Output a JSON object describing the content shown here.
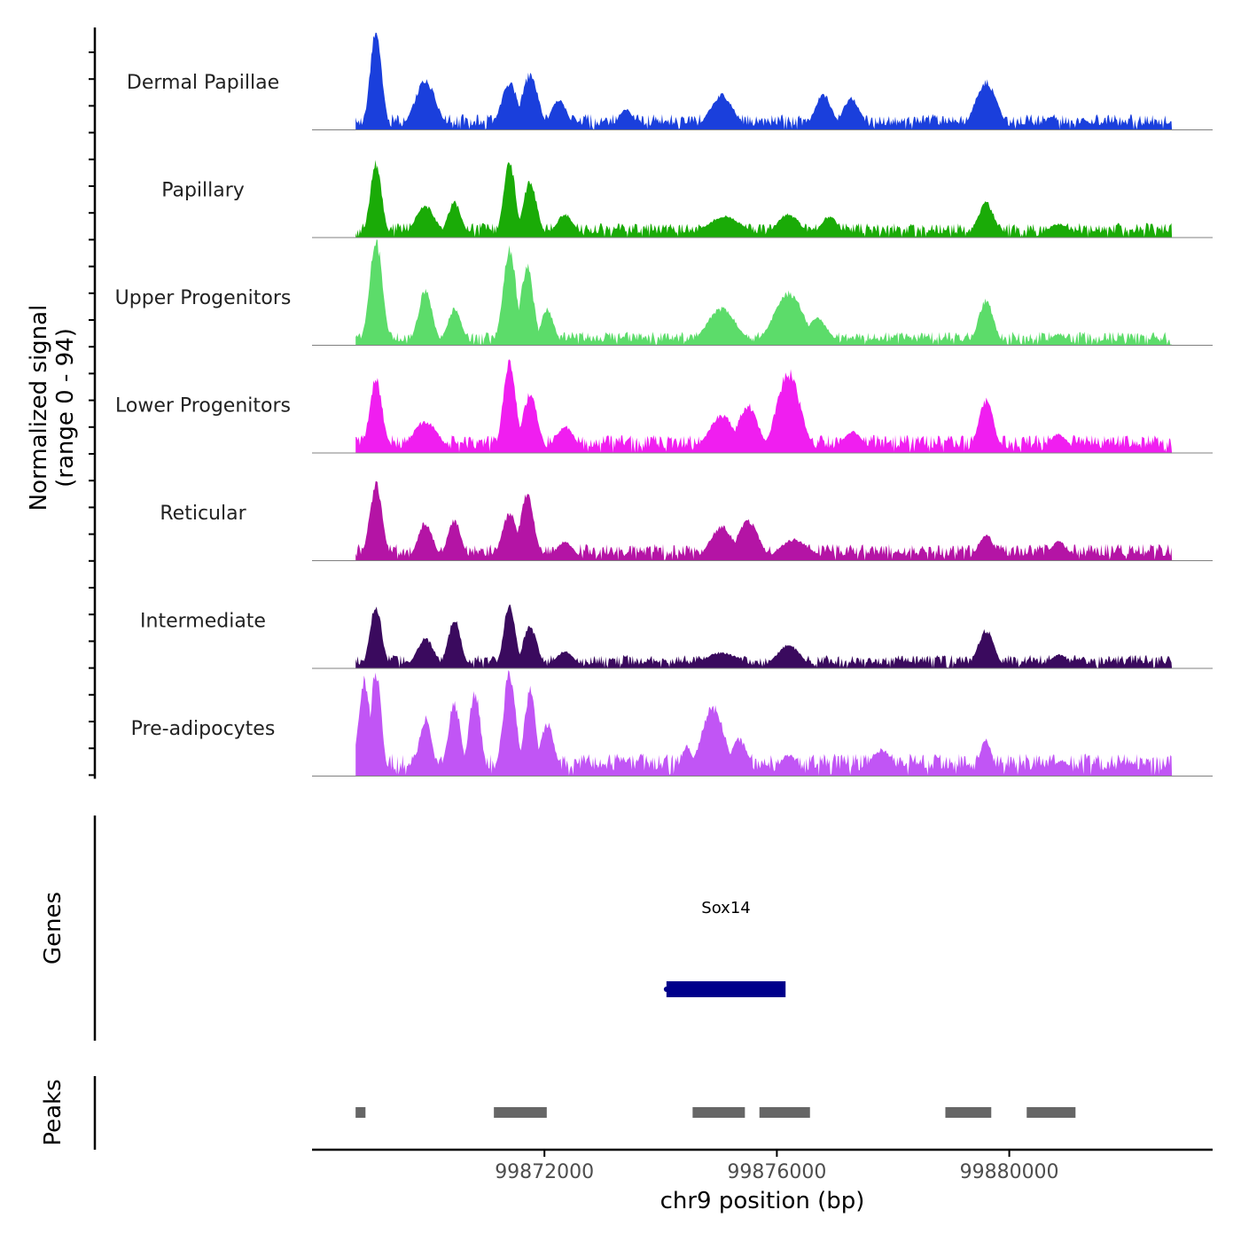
{
  "chart_data": {
    "type": "area",
    "title": "",
    "signal_panel": {
      "ylabel_line1": "Normalized signal",
      "ylabel_line2": "(range 0 - 94)",
      "ylim": [
        0,
        94
      ],
      "tracks": [
        {
          "name": "Dermal Papillae",
          "color": "#1a3fdc",
          "peaks": [
            [
              69100,
              92,
              100
            ],
            [
              69950,
              47,
              180
            ],
            [
              71400,
              45,
              140
            ],
            [
              71750,
              52,
              140
            ],
            [
              72250,
              28,
              140
            ],
            [
              73400,
              20,
              120
            ],
            [
              75050,
              33,
              200
            ],
            [
              76800,
              33,
              150
            ],
            [
              77280,
              30,
              150
            ],
            [
              79600,
              46,
              180
            ],
            [
              81300,
              9,
              100
            ]
          ],
          "baseline": 14
        },
        {
          "name": "Papillary",
          "color": "#1aab07",
          "peaks": [
            [
              69100,
              70,
              100
            ],
            [
              69950,
              30,
              170
            ],
            [
              70450,
              33,
              120
            ],
            [
              71400,
              72,
              100
            ],
            [
              71750,
              52,
              120
            ],
            [
              72350,
              22,
              150
            ],
            [
              75100,
              20,
              300
            ],
            [
              76200,
              22,
              200
            ],
            [
              76900,
              20,
              150
            ],
            [
              79600,
              33,
              140
            ],
            [
              80850,
              13,
              180
            ]
          ],
          "baseline": 13
        },
        {
          "name": "Upper Progenitors",
          "color": "#5cdc6a",
          "peaks": [
            [
              69100,
              100,
              110
            ],
            [
              69950,
              52,
              120
            ],
            [
              70450,
              34,
              120
            ],
            [
              71400,
              93,
              110
            ],
            [
              71700,
              75,
              110
            ],
            [
              72050,
              34,
              110
            ],
            [
              75050,
              35,
              250
            ],
            [
              76200,
              50,
              250
            ],
            [
              76700,
              25,
              180
            ],
            [
              79600,
              42,
              130
            ],
            [
              80850,
              10,
              140
            ]
          ],
          "baseline": 12
        },
        {
          "name": "Lower Progenitors",
          "color": "#f01ef0",
          "peaks": [
            [
              69100,
              70,
              110
            ],
            [
              69950,
              30,
              220
            ],
            [
              71400,
              84,
              110
            ],
            [
              71750,
              56,
              130
            ],
            [
              72350,
              25,
              160
            ],
            [
              75050,
              36,
              220
            ],
            [
              75500,
              45,
              180
            ],
            [
              76200,
              76,
              200
            ],
            [
              77300,
              20,
              180
            ],
            [
              79600,
              50,
              130
            ],
            [
              80850,
              18,
              150
            ]
          ],
          "baseline": 16
        },
        {
          "name": "Reticular",
          "color": "#b414a5",
          "peaks": [
            [
              69100,
              72,
              110
            ],
            [
              69950,
              36,
              130
            ],
            [
              70450,
              38,
              120
            ],
            [
              71400,
              45,
              130
            ],
            [
              71700,
              62,
              120
            ],
            [
              72350,
              18,
              150
            ],
            [
              75050,
              32,
              200
            ],
            [
              75500,
              38,
              180
            ],
            [
              76300,
              20,
              250
            ],
            [
              79600,
              25,
              130
            ],
            [
              80850,
              18,
              150
            ]
          ],
          "baseline": 15
        },
        {
          "name": "Intermediate",
          "color": "#3a0a5e",
          "peaks": [
            [
              69100,
              60,
              100
            ],
            [
              69950,
              28,
              150
            ],
            [
              70450,
              46,
              110
            ],
            [
              71400,
              62,
              100
            ],
            [
              71750,
              40,
              120
            ],
            [
              72350,
              16,
              160
            ],
            [
              75050,
              15,
              300
            ],
            [
              76200,
              22,
              200
            ],
            [
              79600,
              36,
              140
            ],
            [
              80850,
              13,
              150
            ],
            [
              81200,
              8,
              120
            ]
          ],
          "baseline": 12
        },
        {
          "name": "Pre-adipocytes",
          "color": "#c155f5",
          "peaks": [
            [
              68900,
              92,
              100
            ],
            [
              69100,
              100,
              90
            ],
            [
              69950,
              55,
              110
            ],
            [
              70450,
              68,
              110
            ],
            [
              70800,
              80,
              100
            ],
            [
              71400,
              98,
              110
            ],
            [
              71750,
              82,
              100
            ],
            [
              72050,
              50,
              120
            ],
            [
              74450,
              28,
              100
            ],
            [
              74900,
              65,
              200
            ],
            [
              75350,
              35,
              140
            ],
            [
              76200,
              20,
              150
            ],
            [
              77800,
              25,
              180
            ],
            [
              79600,
              35,
              100
            ],
            [
              80900,
              15,
              130
            ],
            [
              82100,
              12,
              80
            ]
          ],
          "baseline": 20
        }
      ]
    },
    "genes_panel": {
      "ylabel": "Genes",
      "genes": [
        {
          "name": "Sox14",
          "start": 74100,
          "end": 76150,
          "color": "#00008b"
        }
      ]
    },
    "peaks_panel": {
      "ylabel": "Peaks",
      "color": "#666666",
      "regions": [
        [
          68750,
          68920
        ],
        [
          71130,
          72040
        ],
        [
          74550,
          75450
        ],
        [
          75700,
          76570
        ],
        [
          78900,
          79690
        ],
        [
          80300,
          81140
        ]
      ]
    },
    "x_axis": {
      "xlabel": "chr9 position (bp)",
      "offset": 99800000,
      "xlim": [
        68000,
        83500
      ],
      "data_range": [
        68750,
        82800
      ],
      "ticks": [
        72000,
        76000,
        80000
      ],
      "tick_labels": [
        "99872000",
        "99876000",
        "99880000"
      ]
    }
  }
}
